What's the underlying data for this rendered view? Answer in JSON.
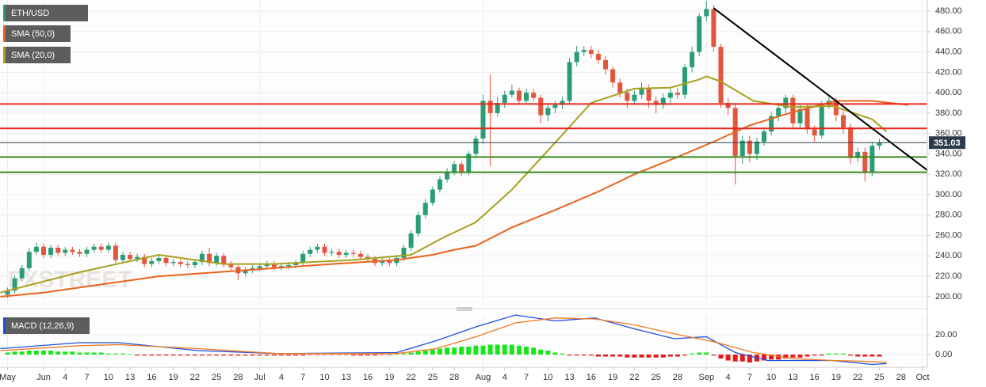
{
  "chart_data": {
    "type": "candlestick",
    "symbol": "ETH/USD",
    "watermark": "FXSTREET",
    "up_color": "#2a9d76",
    "down_color": "#e4553e",
    "xlim": [
      -6.05,
      122.66
    ],
    "ylim": [
      190.6,
      490.9
    ],
    "grid": true,
    "yticks": [
      {
        "value": 200,
        "label": "200.00"
      },
      {
        "value": 220,
        "label": "220.00"
      },
      {
        "value": 240,
        "label": "240.00"
      },
      {
        "value": 260,
        "label": "260.00"
      },
      {
        "value": 280,
        "label": "280.00"
      },
      {
        "value": 300,
        "label": "300.00"
      },
      {
        "value": 320,
        "label": "320.00"
      },
      {
        "value": 340,
        "label": "340.00"
      },
      {
        "value": 360,
        "label": "360.00"
      },
      {
        "value": 380,
        "label": "380.00"
      },
      {
        "value": 400,
        "label": "400.00"
      },
      {
        "value": 420,
        "label": "420.00"
      },
      {
        "value": 440,
        "label": "440.00"
      },
      {
        "value": 460,
        "label": "460.00"
      },
      {
        "value": 480,
        "label": "480.00"
      }
    ],
    "xticks": [
      {
        "value": -5,
        "label": "May"
      },
      {
        "value": 0,
        "label": "Jun"
      },
      {
        "value": 3,
        "label": "4"
      },
      {
        "value": 6,
        "label": "7"
      },
      {
        "value": 9,
        "label": "10"
      },
      {
        "value": 12,
        "label": "13"
      },
      {
        "value": 15,
        "label": "16"
      },
      {
        "value": 18,
        "label": "19"
      },
      {
        "value": 21,
        "label": "22"
      },
      {
        "value": 24,
        "label": "25"
      },
      {
        "value": 27,
        "label": "28"
      },
      {
        "value": 30,
        "label": "Jul"
      },
      {
        "value": 33,
        "label": "4"
      },
      {
        "value": 36,
        "label": "7"
      },
      {
        "value": 39,
        "label": "10"
      },
      {
        "value": 42,
        "label": "13"
      },
      {
        "value": 45,
        "label": "16"
      },
      {
        "value": 48,
        "label": "19"
      },
      {
        "value": 51,
        "label": "22"
      },
      {
        "value": 54,
        "label": "25"
      },
      {
        "value": 57,
        "label": "28"
      },
      {
        "value": 61,
        "label": "Aug"
      },
      {
        "value": 64,
        "label": "4"
      },
      {
        "value": 67,
        "label": "7"
      },
      {
        "value": 70,
        "label": "10"
      },
      {
        "value": 73,
        "label": "13"
      },
      {
        "value": 76,
        "label": "16"
      },
      {
        "value": 79,
        "label": "19"
      },
      {
        "value": 82,
        "label": "22"
      },
      {
        "value": 85,
        "label": "25"
      },
      {
        "value": 88,
        "label": "28"
      },
      {
        "value": 92,
        "label": "Sep"
      },
      {
        "value": 95,
        "label": "4"
      },
      {
        "value": 98,
        "label": "7"
      },
      {
        "value": 101,
        "label": "10"
      },
      {
        "value": 104,
        "label": "13"
      },
      {
        "value": 107,
        "label": "16"
      },
      {
        "value": 110,
        "label": "19"
      },
      {
        "value": 113,
        "label": "22"
      },
      {
        "value": 116,
        "label": "25"
      },
      {
        "value": 119,
        "label": "28"
      },
      {
        "value": 122,
        "label": "Oct"
      }
    ],
    "x": [
      -5,
      -4,
      -3,
      -2,
      -1,
      0,
      1,
      2,
      3,
      4,
      5,
      6,
      7,
      8,
      9,
      10,
      11,
      12,
      13,
      14,
      15,
      16,
      17,
      18,
      19,
      20,
      21,
      22,
      23,
      24,
      25,
      26,
      27,
      28,
      29,
      30,
      31,
      32,
      33,
      34,
      35,
      36,
      37,
      38,
      39,
      40,
      41,
      42,
      43,
      44,
      45,
      46,
      47,
      48,
      49,
      50,
      51,
      52,
      53,
      54,
      55,
      56,
      57,
      58,
      59,
      60,
      61,
      62,
      63,
      64,
      65,
      66,
      67,
      68,
      69,
      70,
      71,
      72,
      73,
      74,
      75,
      76,
      77,
      78,
      79,
      80,
      81,
      82,
      83,
      84,
      85,
      86,
      87,
      88,
      89,
      90,
      91,
      92,
      93,
      94,
      95,
      96,
      97,
      98,
      99,
      100,
      101,
      102,
      103,
      104,
      105,
      106,
      107,
      108,
      109,
      110,
      111,
      112,
      113,
      114,
      115,
      116
    ],
    "open": [
      202,
      206,
      218,
      228,
      244,
      249,
      241,
      248,
      243,
      246,
      244,
      242,
      246,
      249,
      246,
      250,
      236,
      241,
      237,
      239,
      232,
      235,
      238,
      233,
      234,
      232,
      231,
      234,
      242,
      233,
      240,
      232,
      229,
      223,
      226,
      228,
      230,
      232,
      229,
      230,
      231,
      233,
      242,
      246,
      249,
      243,
      244,
      241,
      243,
      242,
      239,
      237,
      233,
      235,
      233,
      238,
      248,
      262,
      280,
      292,
      305,
      315,
      322,
      330,
      322,
      340,
      355,
      392,
      380,
      390,
      398,
      402,
      392,
      400,
      395,
      378,
      385,
      388,
      392,
      430,
      440,
      442,
      438,
      432,
      423,
      410,
      400,
      392,
      398,
      405,
      392,
      388,
      395,
      400,
      398,
      425,
      440,
      475,
      482,
      445,
      390,
      385,
      338,
      353,
      340,
      352,
      362,
      377,
      385,
      395,
      370,
      384,
      364,
      358,
      388,
      392,
      378,
      366,
      336,
      342,
      322,
      348
    ],
    "high": [
      209,
      221,
      231,
      247,
      253,
      252,
      251,
      251,
      249,
      249,
      247,
      249,
      252,
      252,
      253,
      253,
      244,
      244,
      242,
      242,
      238,
      241,
      241,
      237,
      237,
      235,
      237,
      245,
      248,
      243,
      243,
      235,
      232,
      229,
      231,
      233,
      235,
      235,
      233,
      234,
      236,
      245,
      249,
      252,
      252,
      247,
      247,
      246,
      246,
      245,
      242,
      240,
      238,
      238,
      241,
      251,
      265,
      283,
      296,
      308,
      318,
      326,
      333,
      333,
      343,
      358,
      398,
      418,
      396,
      402,
      408,
      405,
      404,
      404,
      398,
      390,
      392,
      396,
      434,
      446,
      446,
      446,
      442,
      436,
      426,
      414,
      404,
      402,
      410,
      408,
      396,
      399,
      404,
      405,
      428,
      445,
      478,
      490,
      486,
      448,
      395,
      390,
      358,
      358,
      356,
      366,
      381,
      390,
      398,
      398,
      388,
      388,
      368,
      392,
      396,
      395,
      382,
      370,
      346,
      346,
      352,
      355
    ],
    "low": [
      199,
      203,
      215,
      225,
      241,
      238,
      238,
      240,
      240,
      241,
      239,
      239,
      243,
      243,
      243,
      233,
      233,
      234,
      234,
      229,
      229,
      232,
      230,
      230,
      229,
      228,
      228,
      231,
      230,
      230,
      229,
      226,
      216,
      220,
      223,
      225,
      227,
      226,
      226,
      227,
      228,
      230,
      239,
      243,
      240,
      240,
      238,
      238,
      239,
      236,
      234,
      230,
      230,
      230,
      230,
      235,
      245,
      259,
      277,
      289,
      302,
      312,
      319,
      318,
      319,
      337,
      350,
      328,
      377,
      385,
      395,
      388,
      389,
      392,
      370,
      372,
      380,
      384,
      389,
      426,
      436,
      434,
      428,
      418,
      405,
      395,
      385,
      388,
      394,
      385,
      380,
      384,
      390,
      394,
      394,
      420,
      436,
      470,
      440,
      385,
      378,
      310,
      330,
      332,
      334,
      348,
      358,
      372,
      380,
      364,
      365,
      360,
      352,
      355,
      384,
      372,
      360,
      330,
      332,
      313,
      318,
      344
    ],
    "close": [
      206,
      218,
      228,
      244,
      249,
      241,
      248,
      243,
      246,
      244,
      242,
      246,
      249,
      246,
      250,
      236,
      241,
      237,
      239,
      232,
      235,
      238,
      233,
      234,
      232,
      231,
      234,
      242,
      233,
      240,
      232,
      229,
      223,
      226,
      228,
      230,
      232,
      229,
      230,
      231,
      233,
      242,
      246,
      249,
      243,
      244,
      241,
      243,
      242,
      239,
      237,
      233,
      235,
      233,
      238,
      248,
      262,
      280,
      292,
      305,
      315,
      322,
      330,
      322,
      340,
      355,
      392,
      380,
      390,
      398,
      402,
      392,
      400,
      395,
      378,
      385,
      388,
      392,
      430,
      440,
      442,
      438,
      432,
      423,
      410,
      400,
      392,
      398,
      405,
      392,
      388,
      395,
      400,
      398,
      425,
      440,
      475,
      482,
      445,
      390,
      385,
      338,
      353,
      340,
      352,
      362,
      377,
      385,
      395,
      370,
      384,
      364,
      358,
      388,
      392,
      378,
      366,
      336,
      342,
      322,
      348,
      351
    ],
    "last_price": 351.03,
    "last_price_color": "#2b3a4a",
    "series": [
      {
        "name": "SMA (50,0)",
        "color": "#e8641b",
        "x": [
          -6,
          0,
          8,
          16,
          24,
          30,
          40,
          49,
          54,
          57,
          60,
          65,
          71,
          77,
          82,
          88,
          93,
          98,
          104,
          110,
          115,
          120
        ],
        "values": [
          200,
          204,
          212,
          220,
          224,
          227,
          232,
          236,
          241,
          246,
          250,
          268,
          285,
          303,
          320,
          337,
          352,
          368,
          381,
          392,
          392,
          388
        ]
      },
      {
        "name": "SMA (20,0)",
        "color": "#a8a01e",
        "x": [
          -6,
          5,
          16,
          25,
          32,
          43,
          51,
          55.5,
          60,
          65,
          71,
          76,
          82,
          87,
          91,
          92,
          94,
          98.5,
          104,
          109.5,
          115,
          117
        ],
        "values": [
          204,
          224,
          241,
          232,
          232,
          236,
          241,
          258,
          273,
          305,
          351,
          390,
          404,
          405,
          413,
          416,
          411,
          392,
          386,
          387,
          374,
          362
        ]
      }
    ],
    "levels": [
      {
        "value": 389,
        "color": "#e8261c"
      },
      {
        "value": 365,
        "color": "#e8261c"
      },
      {
        "value": 337,
        "color": "#3a8a1f"
      },
      {
        "value": 322,
        "color": "#3a8a1f"
      }
    ],
    "trendline": {
      "x": [
        93,
        122.66
      ],
      "values": [
        483,
        324
      ],
      "color": "#000000"
    },
    "macd": {
      "title": "MACD (12,26,9)",
      "ylim": [
        -11.2,
        40.8
      ],
      "yticks": [
        {
          "value": 0,
          "label": "0.00"
        },
        {
          "value": 20,
          "label": "20.00"
        }
      ],
      "macd_line": {
        "color": "#1f4fe0",
        "x": [
          -6,
          5,
          10.5,
          21.5,
          32.5,
          49,
          54.5,
          60,
          65.5,
          71,
          76.5,
          82,
          87.5,
          92,
          96,
          100.5,
          104,
          109.5,
          115,
          117
        ],
        "values": [
          6,
          12,
          12,
          4,
          1,
          2,
          14,
          28,
          40,
          34,
          37,
          26,
          16,
          18,
          2,
          -6,
          -6,
          -6,
          -10,
          -9
        ]
      },
      "signal_line": {
        "color": "#f07a1e",
        "x": [
          -6,
          5,
          10.5,
          21.5,
          32.5,
          49,
          54.5,
          60,
          65.5,
          71,
          76.5,
          82,
          87.5,
          93,
          98.5,
          104,
          109.5,
          115,
          117
        ],
        "values": [
          4,
          9,
          10,
          6,
          1,
          1,
          6,
          18,
          32,
          37,
          36,
          30,
          21,
          13,
          2,
          -4,
          -6,
          -7,
          -8
        ]
      },
      "up_color": "#19e619",
      "down_color": "#e61919",
      "histogram": [
        2,
        3,
        3,
        4,
        4,
        4,
        4,
        3,
        3,
        3,
        2,
        2,
        2,
        2,
        1,
        1,
        1,
        0.5,
        -1,
        -1,
        -1,
        -1,
        -1,
        -1,
        -1,
        -1,
        -1,
        -1,
        -1,
        -1,
        -1,
        -1,
        -1,
        -1,
        -1,
        -1,
        -1,
        -1,
        -1,
        -1,
        -1,
        -1,
        -0.5,
        -0.5,
        -0.5,
        -0.5,
        -0.5,
        -0.5,
        -1,
        -1,
        -1,
        -1,
        -0.5,
        -0.5,
        0.5,
        1,
        2,
        3,
        4,
        5,
        6,
        7,
        7,
        8,
        8,
        9,
        9,
        10,
        10,
        10,
        10,
        9,
        8,
        7,
        5,
        4,
        2,
        1,
        -1,
        -1,
        -1,
        -1,
        -2,
        -2,
        -2,
        -2,
        -3,
        -3,
        -3,
        -3,
        -3,
        -3,
        -2,
        -2,
        -1,
        1,
        2,
        2,
        -1,
        -4,
        -6,
        -7,
        -7,
        -8,
        -7,
        -6,
        -5,
        -5,
        -4,
        -3,
        -3,
        -2,
        -1,
        -1,
        1,
        1,
        1,
        -1,
        -2,
        -2,
        -2,
        -2
      ]
    }
  }
}
